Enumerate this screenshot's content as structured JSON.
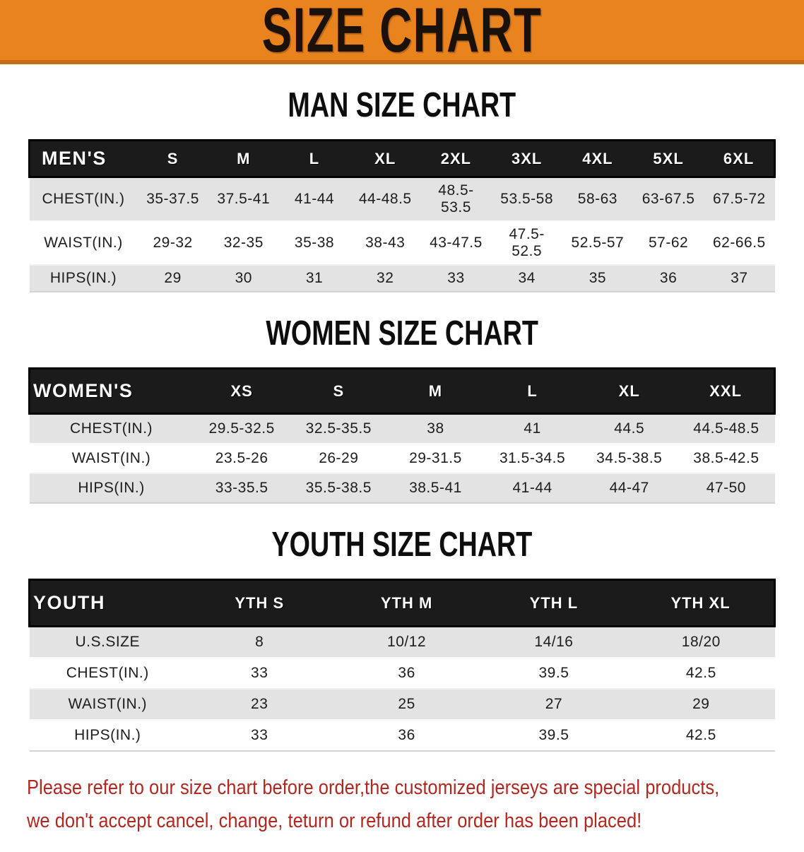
{
  "banner": {
    "title": "SIZE CHART",
    "bg_color": "#E9831E",
    "border_color": "#C76E15"
  },
  "sections": [
    {
      "heading": "MAN SIZE CHART",
      "header_label": "MEN'S",
      "columns": [
        "S",
        "M",
        "L",
        "XL",
        "2XL",
        "3XL",
        "4XL",
        "5XL",
        "6XL"
      ],
      "rows": [
        {
          "label": "CHEST(IN.)",
          "values": [
            "35-37.5",
            "37.5-41",
            "41-44",
            "44-48.5",
            "48.5-53.5",
            "53.5-58",
            "58-63",
            "63-67.5",
            "67.5-72"
          ]
        },
        {
          "label": "WAIST(IN.)",
          "values": [
            "29-32",
            "32-35",
            "35-38",
            "38-43",
            "43-47.5",
            "47.5-52.5",
            "52.5-57",
            "57-62",
            "62-66.5"
          ]
        },
        {
          "label": "HIPS(IN.)",
          "values": [
            "29",
            "30",
            "31",
            "32",
            "33",
            "34",
            "35",
            "36",
            "37"
          ]
        }
      ]
    },
    {
      "heading": "WOMEN SIZE CHART",
      "header_label": "WOMEN'S",
      "columns": [
        "XS",
        "S",
        "M",
        "L",
        "XL",
        "XXL"
      ],
      "rows": [
        {
          "label": "CHEST(IN.)",
          "values": [
            "29.5-32.5",
            "32.5-35.5",
            "38",
            "41",
            "44.5",
            "44.5-48.5"
          ]
        },
        {
          "label": "WAIST(IN.)",
          "values": [
            "23.5-26",
            "26-29",
            "29-31.5",
            "31.5-34.5",
            "34.5-38.5",
            "38.5-42.5"
          ]
        },
        {
          "label": "HIPS(IN.)",
          "values": [
            "33-35.5",
            "35.5-38.5",
            "38.5-41",
            "41-44",
            "44-47",
            "47-50"
          ]
        }
      ]
    },
    {
      "heading": "YOUTH SIZE CHART",
      "header_label": "YOUTH",
      "columns": [
        "YTH S",
        "YTH M",
        "YTH L",
        "YTH XL"
      ],
      "rows": [
        {
          "label": "U.S.SIZE",
          "values": [
            "8",
            "10/12",
            "14/16",
            "18/20"
          ]
        },
        {
          "label": "CHEST(IN.)",
          "values": [
            "33",
            "36",
            "39.5",
            "42.5"
          ]
        },
        {
          "label": "WAIST(IN.)",
          "values": [
            "23",
            "25",
            "27",
            "29"
          ]
        },
        {
          "label": "HIPS(IN.)",
          "values": [
            "33",
            "36",
            "39.5",
            "42.5"
          ]
        }
      ]
    }
  ],
  "disclaimer": {
    "line1": "Please refer to our size chart before order,the customized jerseys are special products,",
    "line2": "we don't accept cancel, change, teturn or refund after order has been placed!",
    "color": "#b2271f"
  }
}
